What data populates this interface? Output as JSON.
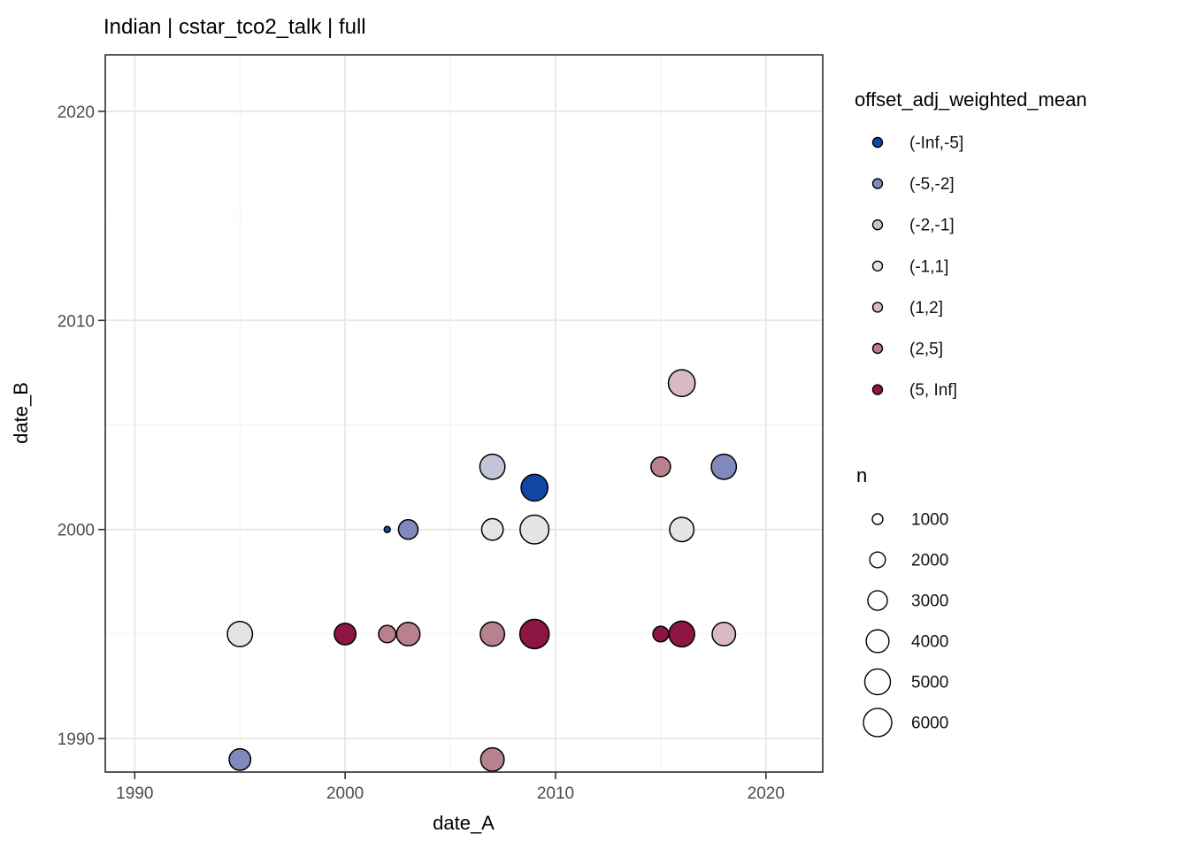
{
  "chart_data": {
    "type": "scatter",
    "title": "Indian | cstar_tco2_talk | full",
    "xlabel": "date_A",
    "ylabel": "date_B",
    "x_ticks": [
      1990,
      2000,
      2010,
      2020
    ],
    "y_ticks": [
      1990,
      2000,
      2010,
      2020
    ],
    "x_minor_ticks": [
      1995,
      2005,
      2015
    ],
    "y_minor_ticks": [
      1995,
      2005,
      2015
    ],
    "xlim": [
      1988.6,
      2022.7
    ],
    "ylim": [
      1988.4,
      2022.7
    ],
    "grid": true,
    "legend_position": "right",
    "color_legend": {
      "title": "offset_adj_weighted_mean",
      "entries": [
        {
          "label": "(-Inf,-5]",
          "color": "#1347A5"
        },
        {
          "label": "(-5,-2]",
          "color": "#8089BC"
        },
        {
          "label": "(-2,-1]",
          "color": "#C3C4D7"
        },
        {
          "label": "(-1,1]",
          "color": "#E4E4E4"
        },
        {
          "label": "(1,2]",
          "color": "#D9BAC3"
        },
        {
          "label": "(2,5]",
          "color": "#B9808E"
        },
        {
          "label": "(5, Inf]",
          "color": "#8C1543"
        }
      ]
    },
    "size_legend": {
      "title": "n",
      "entries": [
        "1000",
        "2000",
        "3000",
        "4000",
        "5000",
        "6000"
      ]
    },
    "points": [
      {
        "date_A": 1995,
        "date_B": 1995,
        "n": 4800,
        "bin": "(-1,1]"
      },
      {
        "date_A": 1995,
        "date_B": 1989,
        "n": 3600,
        "bin": "(-5,-2]"
      },
      {
        "date_A": 2000,
        "date_B": 1995,
        "n": 3600,
        "bin": "(5, Inf]"
      },
      {
        "date_A": 2002,
        "date_B": 1995,
        "n": 2400,
        "bin": "(2,5]"
      },
      {
        "date_A": 2002,
        "date_B": 2000,
        "n": 400,
        "bin": "(-Inf,-5]"
      },
      {
        "date_A": 2003,
        "date_B": 1995,
        "n": 4200,
        "bin": "(2,5]"
      },
      {
        "date_A": 2003,
        "date_B": 2000,
        "n": 3000,
        "bin": "(-5,-2]"
      },
      {
        "date_A": 2007,
        "date_B": 2003,
        "n": 4800,
        "bin": "(-2,-1]"
      },
      {
        "date_A": 2007,
        "date_B": 2000,
        "n": 3600,
        "bin": "(-1,1]"
      },
      {
        "date_A": 2007,
        "date_B": 1995,
        "n": 4500,
        "bin": "(2,5]"
      },
      {
        "date_A": 2007,
        "date_B": 1989,
        "n": 4200,
        "bin": "(2,5]"
      },
      {
        "date_A": 2009,
        "date_B": 2002,
        "n": 5400,
        "bin": "(-Inf,-5]"
      },
      {
        "date_A": 2009,
        "date_B": 2000,
        "n": 6200,
        "bin": "(-1,1]"
      },
      {
        "date_A": 2009,
        "date_B": 1995,
        "n": 6400,
        "bin": "(5, Inf]"
      },
      {
        "date_A": 2015,
        "date_B": 2003,
        "n": 3000,
        "bin": "(2,5]"
      },
      {
        "date_A": 2015,
        "date_B": 1995,
        "n": 2000,
        "bin": "(5, Inf]"
      },
      {
        "date_A": 2016,
        "date_B": 2007,
        "n": 5400,
        "bin": "(1,2]"
      },
      {
        "date_A": 2016,
        "date_B": 2000,
        "n": 4500,
        "bin": "(-1,1]"
      },
      {
        "date_A": 2016,
        "date_B": 1995,
        "n": 5000,
        "bin": "(5, Inf]"
      },
      {
        "date_A": 2018,
        "date_B": 2003,
        "n": 4800,
        "bin": "(-5,-2]"
      },
      {
        "date_A": 2018,
        "date_B": 1995,
        "n": 4200,
        "bin": "(1,2]"
      }
    ]
  }
}
